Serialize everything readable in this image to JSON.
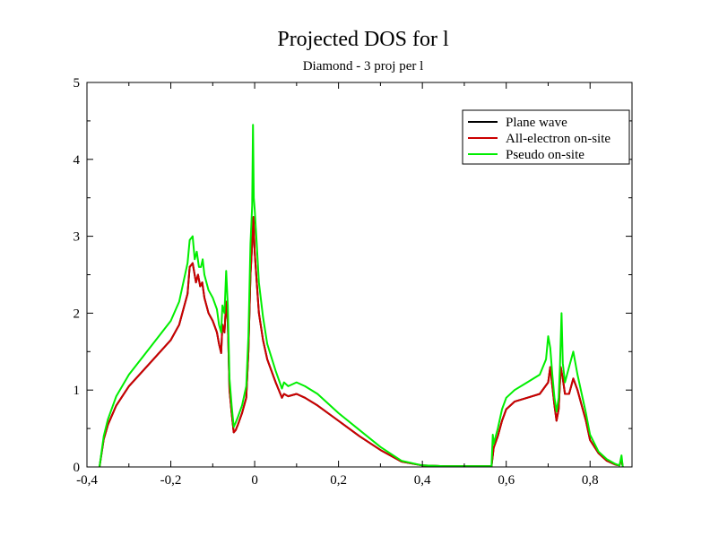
{
  "chart_data": {
    "type": "line",
    "title": "Projected DOS for l",
    "subtitle": "Diamond - 3 proj per l",
    "xlabel": "",
    "ylabel": "",
    "xlim": [
      -0.4,
      0.9
    ],
    "ylim": [
      0,
      5
    ],
    "x_ticks": [
      -0.4,
      -0.2,
      0,
      0.2,
      0.4,
      0.6,
      0.8
    ],
    "x_tick_labels": [
      "-0,4",
      "-0,2",
      "0",
      "0,2",
      "0,4",
      "0,6",
      "0,8"
    ],
    "y_ticks": [
      0,
      1,
      2,
      3,
      4,
      5
    ],
    "y_tick_labels": [
      "0",
      "1",
      "2",
      "3",
      "4",
      "5"
    ],
    "grid": false,
    "legend_position": "top-right",
    "series": [
      {
        "name": "Plane wave",
        "color": "#000000",
        "points": [
          [
            -0.37,
            0
          ],
          [
            -0.36,
            0.36
          ],
          [
            -0.35,
            0.55
          ],
          [
            -0.33,
            0.8
          ],
          [
            -0.3,
            1.05
          ],
          [
            -0.25,
            1.35
          ],
          [
            -0.2,
            1.65
          ],
          [
            -0.18,
            1.85
          ],
          [
            -0.16,
            2.25
          ],
          [
            -0.155,
            2.6
          ],
          [
            -0.148,
            2.65
          ],
          [
            -0.14,
            2.4
          ],
          [
            -0.135,
            2.5
          ],
          [
            -0.13,
            2.35
          ],
          [
            -0.125,
            2.4
          ],
          [
            -0.12,
            2.2
          ],
          [
            -0.11,
            2.0
          ],
          [
            -0.1,
            1.9
          ],
          [
            -0.09,
            1.75
          ],
          [
            -0.085,
            1.6
          ],
          [
            -0.08,
            1.48
          ],
          [
            -0.077,
            1.85
          ],
          [
            -0.072,
            1.75
          ],
          [
            -0.068,
            2.15
          ],
          [
            -0.064,
            1.9
          ],
          [
            -0.06,
            1.0
          ],
          [
            -0.055,
            0.7
          ],
          [
            -0.05,
            0.45
          ],
          [
            -0.045,
            0.48
          ],
          [
            -0.04,
            0.55
          ],
          [
            -0.03,
            0.7
          ],
          [
            -0.02,
            0.9
          ],
          [
            -0.015,
            1.5
          ],
          [
            -0.01,
            2.5
          ],
          [
            -0.006,
            2.9
          ],
          [
            -0.003,
            3.25
          ],
          [
            0.0,
            2.8
          ],
          [
            0.005,
            2.4
          ],
          [
            0.01,
            2.0
          ],
          [
            0.02,
            1.65
          ],
          [
            0.03,
            1.4
          ],
          [
            0.05,
            1.1
          ],
          [
            0.065,
            0.9
          ],
          [
            0.07,
            0.95
          ],
          [
            0.08,
            0.92
          ],
          [
            0.1,
            0.95
          ],
          [
            0.12,
            0.9
          ],
          [
            0.15,
            0.8
          ],
          [
            0.2,
            0.6
          ],
          [
            0.25,
            0.4
          ],
          [
            0.3,
            0.22
          ],
          [
            0.35,
            0.07
          ],
          [
            0.4,
            0.02
          ],
          [
            0.45,
            0.01
          ],
          [
            0.5,
            0.01
          ],
          [
            0.565,
            0.01
          ],
          [
            0.57,
            0.25
          ],
          [
            0.58,
            0.4
          ],
          [
            0.59,
            0.6
          ],
          [
            0.6,
            0.75
          ],
          [
            0.62,
            0.85
          ],
          [
            0.65,
            0.9
          ],
          [
            0.68,
            0.95
          ],
          [
            0.7,
            1.1
          ],
          [
            0.705,
            1.3
          ],
          [
            0.71,
            1.05
          ],
          [
            0.715,
            0.8
          ],
          [
            0.72,
            0.6
          ],
          [
            0.725,
            0.75
          ],
          [
            0.73,
            1.3
          ],
          [
            0.735,
            1.15
          ],
          [
            0.74,
            0.95
          ],
          [
            0.75,
            0.95
          ],
          [
            0.76,
            1.15
          ],
          [
            0.77,
            1.0
          ],
          [
            0.78,
            0.8
          ],
          [
            0.79,
            0.6
          ],
          [
            0.8,
            0.35
          ],
          [
            0.82,
            0.18
          ],
          [
            0.84,
            0.08
          ],
          [
            0.86,
            0.03
          ],
          [
            0.87,
            0.02
          ],
          [
            0.875,
            0.1
          ],
          [
            0.878,
            0.0
          ]
        ]
      },
      {
        "name": "All-electron on-site",
        "color": "#cc0000",
        "points": [
          [
            -0.37,
            0
          ],
          [
            -0.36,
            0.36
          ],
          [
            -0.35,
            0.55
          ],
          [
            -0.33,
            0.8
          ],
          [
            -0.3,
            1.05
          ],
          [
            -0.25,
            1.35
          ],
          [
            -0.2,
            1.65
          ],
          [
            -0.18,
            1.85
          ],
          [
            -0.16,
            2.25
          ],
          [
            -0.155,
            2.6
          ],
          [
            -0.148,
            2.65
          ],
          [
            -0.14,
            2.4
          ],
          [
            -0.135,
            2.5
          ],
          [
            -0.13,
            2.35
          ],
          [
            -0.125,
            2.4
          ],
          [
            -0.12,
            2.2
          ],
          [
            -0.11,
            2.0
          ],
          [
            -0.1,
            1.9
          ],
          [
            -0.09,
            1.75
          ],
          [
            -0.085,
            1.6
          ],
          [
            -0.08,
            1.48
          ],
          [
            -0.077,
            1.85
          ],
          [
            -0.072,
            1.75
          ],
          [
            -0.068,
            2.15
          ],
          [
            -0.064,
            1.9
          ],
          [
            -0.06,
            1.0
          ],
          [
            -0.055,
            0.7
          ],
          [
            -0.05,
            0.45
          ],
          [
            -0.045,
            0.48
          ],
          [
            -0.04,
            0.55
          ],
          [
            -0.03,
            0.7
          ],
          [
            -0.02,
            0.9
          ],
          [
            -0.015,
            1.5
          ],
          [
            -0.01,
            2.5
          ],
          [
            -0.006,
            2.9
          ],
          [
            -0.003,
            3.25
          ],
          [
            0.0,
            2.8
          ],
          [
            0.005,
            2.4
          ],
          [
            0.01,
            2.0
          ],
          [
            0.02,
            1.65
          ],
          [
            0.03,
            1.4
          ],
          [
            0.05,
            1.1
          ],
          [
            0.065,
            0.9
          ],
          [
            0.07,
            0.95
          ],
          [
            0.08,
            0.92
          ],
          [
            0.1,
            0.95
          ],
          [
            0.12,
            0.9
          ],
          [
            0.15,
            0.8
          ],
          [
            0.2,
            0.6
          ],
          [
            0.25,
            0.4
          ],
          [
            0.3,
            0.22
          ],
          [
            0.35,
            0.07
          ],
          [
            0.4,
            0.02
          ],
          [
            0.45,
            0.01
          ],
          [
            0.5,
            0.01
          ],
          [
            0.565,
            0.01
          ],
          [
            0.57,
            0.25
          ],
          [
            0.58,
            0.4
          ],
          [
            0.59,
            0.6
          ],
          [
            0.6,
            0.75
          ],
          [
            0.62,
            0.85
          ],
          [
            0.65,
            0.9
          ],
          [
            0.68,
            0.95
          ],
          [
            0.7,
            1.1
          ],
          [
            0.705,
            1.3
          ],
          [
            0.71,
            1.05
          ],
          [
            0.715,
            0.8
          ],
          [
            0.72,
            0.6
          ],
          [
            0.725,
            0.75
          ],
          [
            0.73,
            1.3
          ],
          [
            0.735,
            1.15
          ],
          [
            0.74,
            0.95
          ],
          [
            0.75,
            0.95
          ],
          [
            0.76,
            1.15
          ],
          [
            0.77,
            1.0
          ],
          [
            0.78,
            0.8
          ],
          [
            0.79,
            0.6
          ],
          [
            0.8,
            0.35
          ],
          [
            0.82,
            0.18
          ],
          [
            0.84,
            0.08
          ],
          [
            0.86,
            0.03
          ],
          [
            0.87,
            0.02
          ],
          [
            0.875,
            0.1
          ],
          [
            0.878,
            0.0
          ]
        ]
      },
      {
        "name": "Pseudo on-site",
        "color": "#00ee00",
        "points": [
          [
            -0.37,
            0
          ],
          [
            -0.36,
            0.4
          ],
          [
            -0.35,
            0.62
          ],
          [
            -0.33,
            0.92
          ],
          [
            -0.3,
            1.2
          ],
          [
            -0.25,
            1.55
          ],
          [
            -0.2,
            1.9
          ],
          [
            -0.18,
            2.15
          ],
          [
            -0.16,
            2.65
          ],
          [
            -0.155,
            2.95
          ],
          [
            -0.148,
            3.0
          ],
          [
            -0.143,
            2.7
          ],
          [
            -0.138,
            2.8
          ],
          [
            -0.133,
            2.6
          ],
          [
            -0.128,
            2.6
          ],
          [
            -0.124,
            2.7
          ],
          [
            -0.12,
            2.5
          ],
          [
            -0.11,
            2.3
          ],
          [
            -0.1,
            2.2
          ],
          [
            -0.09,
            2.05
          ],
          [
            -0.085,
            1.85
          ],
          [
            -0.08,
            1.75
          ],
          [
            -0.077,
            2.1
          ],
          [
            -0.072,
            2.0
          ],
          [
            -0.068,
            2.55
          ],
          [
            -0.064,
            2.1
          ],
          [
            -0.06,
            1.15
          ],
          [
            -0.055,
            0.8
          ],
          [
            -0.05,
            0.52
          ],
          [
            -0.045,
            0.58
          ],
          [
            -0.04,
            0.65
          ],
          [
            -0.03,
            0.8
          ],
          [
            -0.02,
            1.05
          ],
          [
            -0.015,
            1.7
          ],
          [
            -0.01,
            2.9
          ],
          [
            -0.006,
            3.4
          ],
          [
            -0.004,
            4.45
          ],
          [
            -0.002,
            3.5
          ],
          [
            0.0,
            3.35
          ],
          [
            0.005,
            2.9
          ],
          [
            0.01,
            2.4
          ],
          [
            0.02,
            1.95
          ],
          [
            0.03,
            1.6
          ],
          [
            0.05,
            1.25
          ],
          [
            0.065,
            1.02
          ],
          [
            0.07,
            1.1
          ],
          [
            0.08,
            1.05
          ],
          [
            0.1,
            1.1
          ],
          [
            0.12,
            1.05
          ],
          [
            0.15,
            0.95
          ],
          [
            0.2,
            0.7
          ],
          [
            0.25,
            0.48
          ],
          [
            0.3,
            0.26
          ],
          [
            0.35,
            0.08
          ],
          [
            0.4,
            0.02
          ],
          [
            0.45,
            0.01
          ],
          [
            0.5,
            0.01
          ],
          [
            0.565,
            0.01
          ],
          [
            0.568,
            0.42
          ],
          [
            0.57,
            0.3
          ],
          [
            0.58,
            0.5
          ],
          [
            0.59,
            0.75
          ],
          [
            0.6,
            0.9
          ],
          [
            0.62,
            1.0
          ],
          [
            0.65,
            1.1
          ],
          [
            0.68,
            1.2
          ],
          [
            0.695,
            1.4
          ],
          [
            0.7,
            1.7
          ],
          [
            0.705,
            1.55
          ],
          [
            0.71,
            1.2
          ],
          [
            0.715,
            0.9
          ],
          [
            0.72,
            0.72
          ],
          [
            0.725,
            0.9
          ],
          [
            0.728,
            1.3
          ],
          [
            0.732,
            2.0
          ],
          [
            0.735,
            1.35
          ],
          [
            0.74,
            1.1
          ],
          [
            0.75,
            1.3
          ],
          [
            0.76,
            1.5
          ],
          [
            0.77,
            1.2
          ],
          [
            0.78,
            0.95
          ],
          [
            0.79,
            0.7
          ],
          [
            0.8,
            0.42
          ],
          [
            0.82,
            0.2
          ],
          [
            0.84,
            0.1
          ],
          [
            0.86,
            0.04
          ],
          [
            0.87,
            0.02
          ],
          [
            0.875,
            0.15
          ],
          [
            0.878,
            0.0
          ]
        ]
      }
    ]
  }
}
